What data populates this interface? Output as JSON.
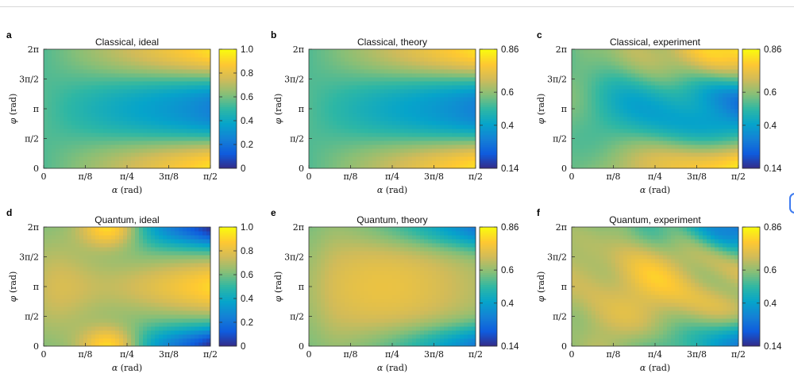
{
  "figure": {
    "x_axis_label_symbol": "α",
    "x_axis_label_unit": "(rad)",
    "y_axis_label_symbol": "φ",
    "y_axis_label_unit": "(rad)",
    "x_tick_labels": [
      "0",
      "π/8",
      "π/4",
      "3π/8",
      "π/2"
    ],
    "y_tick_labels": [
      "0",
      "π/2",
      "π",
      "3π/2",
      "2π"
    ],
    "colormap": [
      "#352a87",
      "#0f5cdd",
      "#1481d6",
      "#06a4ca",
      "#2eb7a4",
      "#87bf77",
      "#d1bb59",
      "#fec832",
      "#f9fb0e"
    ]
  },
  "chart_data": [
    {
      "type": "heatmap",
      "panel": "a",
      "title": "Classical, ideal",
      "model": "classical",
      "shape": "ideal",
      "xlim": [
        0,
        1.5708
      ],
      "ylim": [
        0,
        6.2832
      ],
      "colorbar": {
        "range": [
          0,
          1.0
        ],
        "tick_values": [
          0,
          0.2,
          0.4,
          0.6,
          0.8,
          1.0
        ],
        "tick_labels": [
          "0",
          "0.2",
          "0.4",
          "0.6",
          "0.8",
          "1.0"
        ]
      }
    },
    {
      "type": "heatmap",
      "panel": "b",
      "title": "Classical, theory",
      "model": "classical",
      "shape": "theory",
      "xlim": [
        0,
        1.5708
      ],
      "ylim": [
        0,
        6.2832
      ],
      "colorbar": {
        "range": [
          0.14,
          0.86
        ],
        "tick_values": [
          0.14,
          0.4,
          0.6,
          0.86
        ],
        "tick_labels": [
          "0.14",
          "0.4",
          "0.6",
          "0.86"
        ]
      }
    },
    {
      "type": "heatmap",
      "panel": "c",
      "title": "Classical, experiment",
      "model": "classical",
      "shape": "experiment",
      "xlim": [
        0,
        1.5708
      ],
      "ylim": [
        0,
        6.2832
      ],
      "colorbar": {
        "range": [
          0.14,
          0.86
        ],
        "tick_values": [
          0.14,
          0.4,
          0.6,
          0.86
        ],
        "tick_labels": [
          "0.14",
          "0.4",
          "0.6",
          "0.86"
        ]
      }
    },
    {
      "type": "heatmap",
      "panel": "d",
      "title": "Quantum, ideal",
      "model": "quantum",
      "shape": "ideal",
      "xlim": [
        0,
        1.5708
      ],
      "ylim": [
        0,
        6.2832
      ],
      "colorbar": {
        "range": [
          0,
          1.0
        ],
        "tick_values": [
          0,
          0.2,
          0.4,
          0.6,
          0.8,
          1.0
        ],
        "tick_labels": [
          "0",
          "0.2",
          "0.4",
          "0.6",
          "0.8",
          "1.0"
        ]
      }
    },
    {
      "type": "heatmap",
      "panel": "e",
      "title": "Quantum, theory",
      "model": "quantum",
      "shape": "theory",
      "xlim": [
        0,
        1.5708
      ],
      "ylim": [
        0,
        6.2832
      ],
      "colorbar": {
        "range": [
          0.14,
          0.86
        ],
        "tick_values": [
          0.14,
          0.4,
          0.6,
          0.86
        ],
        "tick_labels": [
          "0.14",
          "0.4",
          "0.6",
          "0.86"
        ]
      }
    },
    {
      "type": "heatmap",
      "panel": "f",
      "title": "Quantum, experiment",
      "model": "quantum",
      "shape": "experiment",
      "xlim": [
        0,
        1.5708
      ],
      "ylim": [
        0,
        6.2832
      ],
      "colorbar": {
        "range": [
          0.14,
          0.86
        ],
        "tick_values": [
          0.14,
          0.4,
          0.6,
          0.86
        ],
        "tick_labels": [
          "0.14",
          "0.4",
          "0.6",
          "0.86"
        ]
      }
    }
  ]
}
